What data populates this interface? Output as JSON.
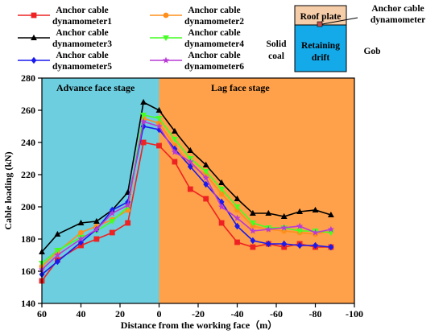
{
  "chart_data": {
    "type": "line",
    "xlabel": "Distance from the working face（m）",
    "ylabel": "Cable loading (kN)",
    "xlim": [
      60,
      -100
    ],
    "ylim": [
      140,
      280
    ],
    "xticks": [
      60,
      40,
      20,
      0,
      -20,
      -40,
      -60,
      -80,
      -100
    ],
    "yticks": [
      140,
      160,
      180,
      200,
      220,
      240,
      260,
      280
    ],
    "stages": [
      {
        "label": "Advance face stage",
        "from": 60,
        "to": 0,
        "color": "#6ccedf"
      },
      {
        "label": "Lag face stage",
        "from": 0,
        "to": -100,
        "color": "#ffa04a"
      }
    ],
    "series": [
      {
        "name_line1": "Anchor cable",
        "name_line2": "dynamometer1",
        "color": "#ee2222",
        "marker": "square",
        "x": [
          60,
          52,
          40,
          32,
          24,
          16,
          8,
          0,
          -8,
          -16,
          -24,
          -32,
          -40,
          -48,
          -56,
          -64,
          -72,
          -80,
          -88
        ],
        "y": [
          154,
          167,
          176,
          180,
          184,
          190,
          240,
          238,
          228,
          211,
          205,
          190,
          178,
          175,
          177,
          175,
          177,
          175,
          175
        ]
      },
      {
        "name_line1": "Anchor cable",
        "name_line2": "dynamometer2",
        "color": "#ff8f1a",
        "marker": "circle",
        "x": [
          60,
          52,
          40,
          32,
          24,
          16,
          8,
          0,
          -8,
          -16,
          -24,
          -32,
          -40,
          -48,
          -56,
          -64,
          -72,
          -80,
          -88
        ],
        "y": [
          163,
          172,
          184,
          188,
          192,
          198,
          255,
          252,
          238,
          226,
          220,
          208,
          198,
          188,
          186,
          185,
          184,
          183,
          185
        ]
      },
      {
        "name_line1": "Anchor cable",
        "name_line2": "dynamometer3",
        "color": "#000000",
        "marker": "triangle",
        "x": [
          60,
          52,
          40,
          32,
          24,
          16,
          8,
          0,
          -8,
          -16,
          -24,
          -32,
          -40,
          -48,
          -56,
          -64,
          -72,
          -80,
          -88
        ],
        "y": [
          172,
          183,
          190,
          191,
          198,
          209,
          265,
          260,
          247,
          235,
          226,
          215,
          205,
          196,
          196,
          194,
          197,
          198,
          195
        ]
      },
      {
        "name_line1": "Anchor cable",
        "name_line2": "dynamometer4",
        "color": "#44ff22",
        "marker": "triangle-down",
        "x": [
          60,
          52,
          40,
          32,
          24,
          16,
          8,
          0,
          -8,
          -16,
          -24,
          -32,
          -40,
          -48,
          -56,
          -64,
          -72,
          -80,
          -88
        ],
        "y": [
          165,
          173,
          181,
          185,
          191,
          200,
          257,
          255,
          242,
          230,
          222,
          211,
          200,
          190,
          187,
          187,
          185,
          185,
          184
        ]
      },
      {
        "name_line1": "Anchor cable",
        "name_line2": "dynamometer5",
        "color": "#1a1aee",
        "marker": "diamond",
        "x": [
          60,
          52,
          40,
          32,
          24,
          16,
          8,
          0,
          -8,
          -16,
          -24,
          -32,
          -40,
          -48,
          -56,
          -64,
          -72,
          -80,
          -88
        ],
        "y": [
          158,
          166,
          178,
          186,
          198,
          203,
          250,
          248,
          236,
          225,
          214,
          203,
          188,
          179,
          177,
          177,
          176,
          176,
          175
        ]
      },
      {
        "name_line1": "Anchor cable",
        "name_line2": "dynamometer6",
        "color": "#b83ad6",
        "marker": "star",
        "x": [
          60,
          52,
          40,
          32,
          24,
          16,
          8,
          0,
          -8,
          -16,
          -24,
          -32,
          -40,
          -48,
          -56,
          -64,
          -72,
          -80,
          -88
        ],
        "y": [
          161,
          170,
          180,
          186,
          196,
          201,
          253,
          250,
          234,
          228,
          218,
          200,
          193,
          185,
          186,
          187,
          188,
          184,
          186
        ]
      }
    ],
    "legend_position": "top-left"
  },
  "inset": {
    "roof_label": "Roof plate",
    "drift_line1": "Retaining",
    "drift_line2": "drift",
    "coal_line1": "Solid",
    "coal_line2": "coal",
    "gob_label": "Gob",
    "anchor_line1": "Anchor cable",
    "anchor_line2": "dynamometer",
    "roof_color": "#f6cda9",
    "drift_color": "#14a9e8",
    "anchor_color": "#c0504d"
  }
}
